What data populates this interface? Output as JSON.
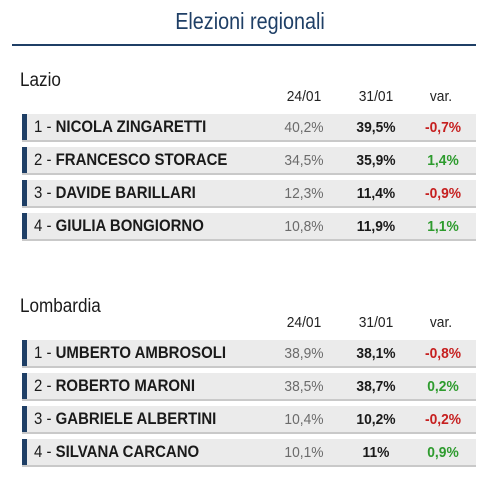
{
  "header": {
    "title": "Elezioni regionali"
  },
  "columns": {
    "date1": "24/01",
    "date2": "31/01",
    "change": "var."
  },
  "colors": {
    "title": "#1f3f66",
    "positive": "#2e9b2e",
    "negative": "#c62020",
    "row_bg": "#ebebeb"
  },
  "sections": [
    {
      "region": "Lazio",
      "rows": [
        {
          "rank": "1 -",
          "name": "NICOLA ZINGARETTI",
          "v1": "40,2%",
          "v2": "39,5%",
          "var": "-0,7%",
          "sign": "neg"
        },
        {
          "rank": "2 -",
          "name": "FRANCESCO STORACE",
          "v1": "34,5%",
          "v2": "35,9%",
          "var": "1,4%",
          "sign": "pos"
        },
        {
          "rank": "3 -",
          "name": "DAVIDE BARILLARI",
          "v1": "12,3%",
          "v2": "11,4%",
          "var": "-0,9%",
          "sign": "neg"
        },
        {
          "rank": "4 -",
          "name": "GIULIA BONGIORNO",
          "v1": "10,8%",
          "v2": "11,9%",
          "var": "1,1%",
          "sign": "pos"
        }
      ]
    },
    {
      "region": "Lombardia",
      "rows": [
        {
          "rank": "1 -",
          "name": "UMBERTO AMBROSOLI",
          "v1": "38,9%",
          "v2": "38,1%",
          "var": "-0,8%",
          "sign": "neg"
        },
        {
          "rank": "2 -",
          "name": "ROBERTO MARONI",
          "v1": "38,5%",
          "v2": "38,7%",
          "var": "0,2%",
          "sign": "pos"
        },
        {
          "rank": "3 -",
          "name": "GABRIELE ALBERTINI",
          "v1": "10,4%",
          "v2": "10,2%",
          "var": "-0,2%",
          "sign": "neg"
        },
        {
          "rank": "4 -",
          "name": "SILVANA CARCANO",
          "v1": "10,1%",
          "v2": "11%",
          "var": "0,9%",
          "sign": "pos"
        }
      ]
    }
  ],
  "chart_data": {
    "type": "table",
    "title": "Elezioni regionali",
    "columns": [
      "24/01",
      "31/01",
      "var."
    ],
    "tables": [
      {
        "name": "Lazio",
        "rows": [
          {
            "label": "1 - NICOLA ZINGARETTI",
            "values": [
              40.2,
              39.5,
              -0.7
            ]
          },
          {
            "label": "2 - FRANCESCO STORACE",
            "values": [
              34.5,
              35.9,
              1.4
            ]
          },
          {
            "label": "3 - DAVIDE BARILLARI",
            "values": [
              12.3,
              11.4,
              -0.9
            ]
          },
          {
            "label": "4 - GIULIA BONGIORNO",
            "values": [
              10.8,
              11.9,
              1.1
            ]
          }
        ]
      },
      {
        "name": "Lombardia",
        "rows": [
          {
            "label": "1 - UMBERTO AMBROSOLI",
            "values": [
              38.9,
              38.1,
              -0.8
            ]
          },
          {
            "label": "2 - ROBERTO MARONI",
            "values": [
              38.5,
              38.7,
              0.2
            ]
          },
          {
            "label": "3 - GABRIELE ALBERTINI",
            "values": [
              10.4,
              10.2,
              -0.2
            ]
          },
          {
            "label": "4 - SILVANA CARCANO",
            "values": [
              10.1,
              11.0,
              0.9
            ]
          }
        ]
      }
    ]
  }
}
